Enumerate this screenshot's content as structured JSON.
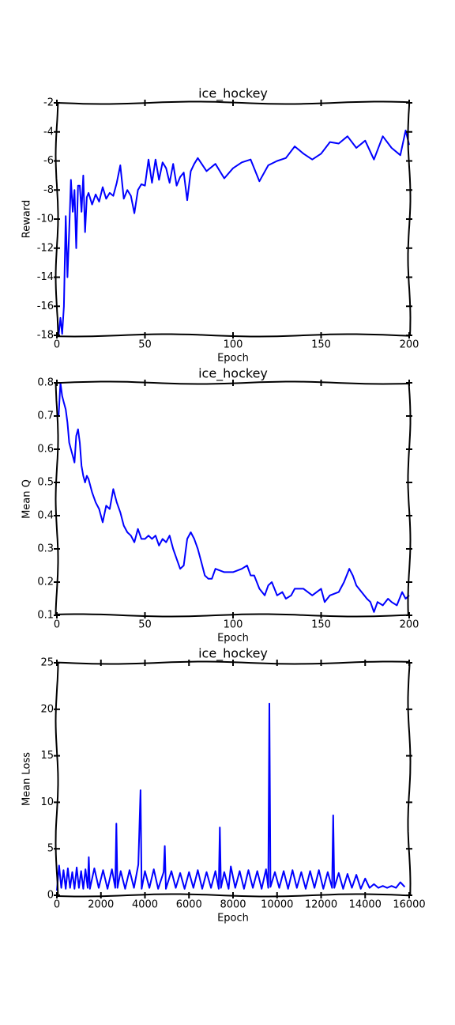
{
  "chart_data": [
    {
      "type": "line",
      "title": "ice_hockey",
      "xlabel": "Epoch",
      "ylabel": "Reward",
      "xlim": [
        0,
        200
      ],
      "xticks": [
        0,
        50,
        100,
        150,
        200
      ],
      "ylim": [
        -18,
        -2
      ],
      "yticks": [
        -18,
        -16,
        -14,
        -12,
        -10,
        -8,
        -6,
        -4,
        -2
      ],
      "series": [
        {
          "name": null,
          "color": "#0000ff",
          "x": [
            1,
            2,
            3,
            4,
            5,
            6,
            7,
            8,
            9,
            10,
            11,
            12,
            13,
            14,
            15,
            16,
            17,
            18,
            20,
            22,
            24,
            26,
            28,
            30,
            32,
            34,
            36,
            38,
            40,
            42,
            44,
            46,
            48,
            50,
            52,
            54,
            56,
            58,
            60,
            62,
            64,
            66,
            68,
            70,
            72,
            74,
            76,
            78,
            80,
            85,
            90,
            95,
            100,
            105,
            110,
            115,
            120,
            125,
            130,
            135,
            140,
            145,
            150,
            155,
            160,
            165,
            170,
            175,
            180,
            185,
            190,
            195,
            198,
            200
          ],
          "values": [
            -18,
            -16.8,
            -17.9,
            -16,
            -9.8,
            -14,
            -10.8,
            -7.3,
            -9.5,
            -8,
            -12,
            -7.7,
            -7.7,
            -9.5,
            -7,
            -10.9,
            -8.5,
            -8.2,
            -9,
            -8.3,
            -8.8,
            -7.8,
            -8.6,
            -8.2,
            -8.4,
            -7.5,
            -6.3,
            -8.6,
            -8,
            -8.4,
            -9.6,
            -8,
            -7.6,
            -7.7,
            -5.9,
            -7.5,
            -5.9,
            -7.3,
            -6.1,
            -6.5,
            -7.5,
            -6.2,
            -7.7,
            -7.1,
            -6.8,
            -8.7,
            -6.7,
            -6.2,
            -5.8,
            -6.7,
            -6.2,
            -7.2,
            -6.5,
            -6.1,
            -5.9,
            -7.4,
            -6.3,
            -6,
            -5.8,
            -5,
            -5.5,
            -5.9,
            -5.5,
            -4.7,
            -4.8,
            -4.3,
            -5.1,
            -4.6,
            -5.9,
            -4.3,
            -5.1,
            -5.6,
            -3.9,
            -4.9
          ]
        }
      ]
    },
    {
      "type": "line",
      "title": "ice_hockey",
      "xlabel": "Epoch",
      "ylabel": "Mean Q",
      "xlim": [
        0,
        200
      ],
      "xticks": [
        0,
        50,
        100,
        150,
        200
      ],
      "ylim": [
        0.1,
        0.8
      ],
      "yticks": [
        0.1,
        0.2,
        0.3,
        0.4,
        0.5,
        0.6,
        0.7,
        0.8
      ],
      "series": [
        {
          "name": null,
          "color": "#0000ff",
          "x": [
            1,
            2,
            3,
            4,
            5,
            6,
            7,
            8,
            9,
            10,
            11,
            12,
            13,
            14,
            15,
            16,
            17,
            18,
            20,
            22,
            24,
            26,
            28,
            30,
            32,
            34,
            36,
            38,
            40,
            42,
            44,
            46,
            48,
            50,
            52,
            54,
            56,
            58,
            60,
            62,
            64,
            66,
            68,
            70,
            72,
            74,
            76,
            78,
            80,
            82,
            84,
            86,
            88,
            90,
            95,
            100,
            105,
            108,
            110,
            112,
            115,
            118,
            120,
            122,
            125,
            128,
            130,
            133,
            135,
            140,
            145,
            150,
            152,
            155,
            160,
            163,
            166,
            168,
            170,
            173,
            176,
            178,
            180,
            182,
            185,
            188,
            190,
            193,
            196,
            198,
            200
          ],
          "values": [
            0.7,
            0.8,
            0.76,
            0.74,
            0.72,
            0.68,
            0.62,
            0.6,
            0.58,
            0.56,
            0.64,
            0.66,
            0.62,
            0.55,
            0.52,
            0.5,
            0.52,
            0.51,
            0.47,
            0.44,
            0.42,
            0.38,
            0.43,
            0.42,
            0.48,
            0.44,
            0.41,
            0.37,
            0.35,
            0.34,
            0.32,
            0.36,
            0.33,
            0.33,
            0.34,
            0.33,
            0.34,
            0.31,
            0.33,
            0.32,
            0.34,
            0.3,
            0.27,
            0.24,
            0.25,
            0.33,
            0.35,
            0.33,
            0.3,
            0.26,
            0.22,
            0.21,
            0.21,
            0.24,
            0.23,
            0.23,
            0.24,
            0.25,
            0.22,
            0.22,
            0.18,
            0.16,
            0.19,
            0.2,
            0.16,
            0.17,
            0.15,
            0.16,
            0.18,
            0.18,
            0.16,
            0.18,
            0.14,
            0.16,
            0.17,
            0.2,
            0.24,
            0.22,
            0.19,
            0.17,
            0.15,
            0.14,
            0.11,
            0.14,
            0.13,
            0.15,
            0.14,
            0.13,
            0.17,
            0.15,
            0.16
          ]
        }
      ]
    },
    {
      "type": "line",
      "title": "ice_hockey",
      "xlabel": "Epoch",
      "ylabel": "Mean Loss",
      "xlim": [
        0,
        16000
      ],
      "xticks": [
        0,
        2000,
        4000,
        6000,
        8000,
        10000,
        12000,
        14000,
        16000
      ],
      "ylim": [
        0,
        25
      ],
      "yticks": [
        0,
        5,
        10,
        15,
        20,
        25
      ],
      "series": [
        {
          "name": null,
          "color": "#0000ff",
          "x": [
            0,
            100,
            200,
            300,
            400,
            500,
            600,
            700,
            800,
            900,
            1000,
            1100,
            1200,
            1300,
            1400,
            1450,
            1500,
            1700,
            1900,
            2100,
            2300,
            2500,
            2650,
            2700,
            2750,
            2900,
            3100,
            3300,
            3500,
            3700,
            3800,
            3850,
            4000,
            4200,
            4400,
            4600,
            4850,
            4900,
            4950,
            5200,
            5400,
            5600,
            5800,
            6000,
            6200,
            6400,
            6600,
            6800,
            7000,
            7200,
            7350,
            7400,
            7450,
            7600,
            7800,
            7900,
            8100,
            8300,
            8500,
            8700,
            8900,
            9100,
            9300,
            9500,
            9600,
            9650,
            9700,
            9900,
            10100,
            10300,
            10500,
            10700,
            10900,
            11100,
            11300,
            11500,
            11700,
            11900,
            12100,
            12300,
            12500,
            12550,
            12600,
            12800,
            13000,
            13200,
            13400,
            13600,
            13800,
            14000,
            14200,
            14400,
            14600,
            14800,
            15000,
            15200,
            15400,
            15600,
            15800
          ],
          "values": [
            0.5,
            3.2,
            0.8,
            2.7,
            0.7,
            2.9,
            0.8,
            2.5,
            0.7,
            3.0,
            0.8,
            2.6,
            0.7,
            2.8,
            0.8,
            4.1,
            0.7,
            2.9,
            0.8,
            2.7,
            0.7,
            2.8,
            0.8,
            7.7,
            0.8,
            2.6,
            0.7,
            2.7,
            0.8,
            3.3,
            11.3,
            0.7,
            2.6,
            0.8,
            2.8,
            0.7,
            2.5,
            5.3,
            0.7,
            2.6,
            0.8,
            2.4,
            0.7,
            2.5,
            0.8,
            2.7,
            0.7,
            2.5,
            0.8,
            2.6,
            0.7,
            7.3,
            0.8,
            2.5,
            0.7,
            3.1,
            0.8,
            2.6,
            0.7,
            2.7,
            0.8,
            2.6,
            0.7,
            2.8,
            0.8,
            20.6,
            0.9,
            2.5,
            0.8,
            2.6,
            0.7,
            2.7,
            0.8,
            2.5,
            0.7,
            2.6,
            0.8,
            2.7,
            0.7,
            2.5,
            0.8,
            8.6,
            0.8,
            2.4,
            0.7,
            2.3,
            0.8,
            2.2,
            0.7,
            1.8,
            0.8,
            1.2,
            0.8,
            1.0,
            0.8,
            1.0,
            0.8,
            1.4,
            0.9
          ]
        }
      ]
    }
  ]
}
